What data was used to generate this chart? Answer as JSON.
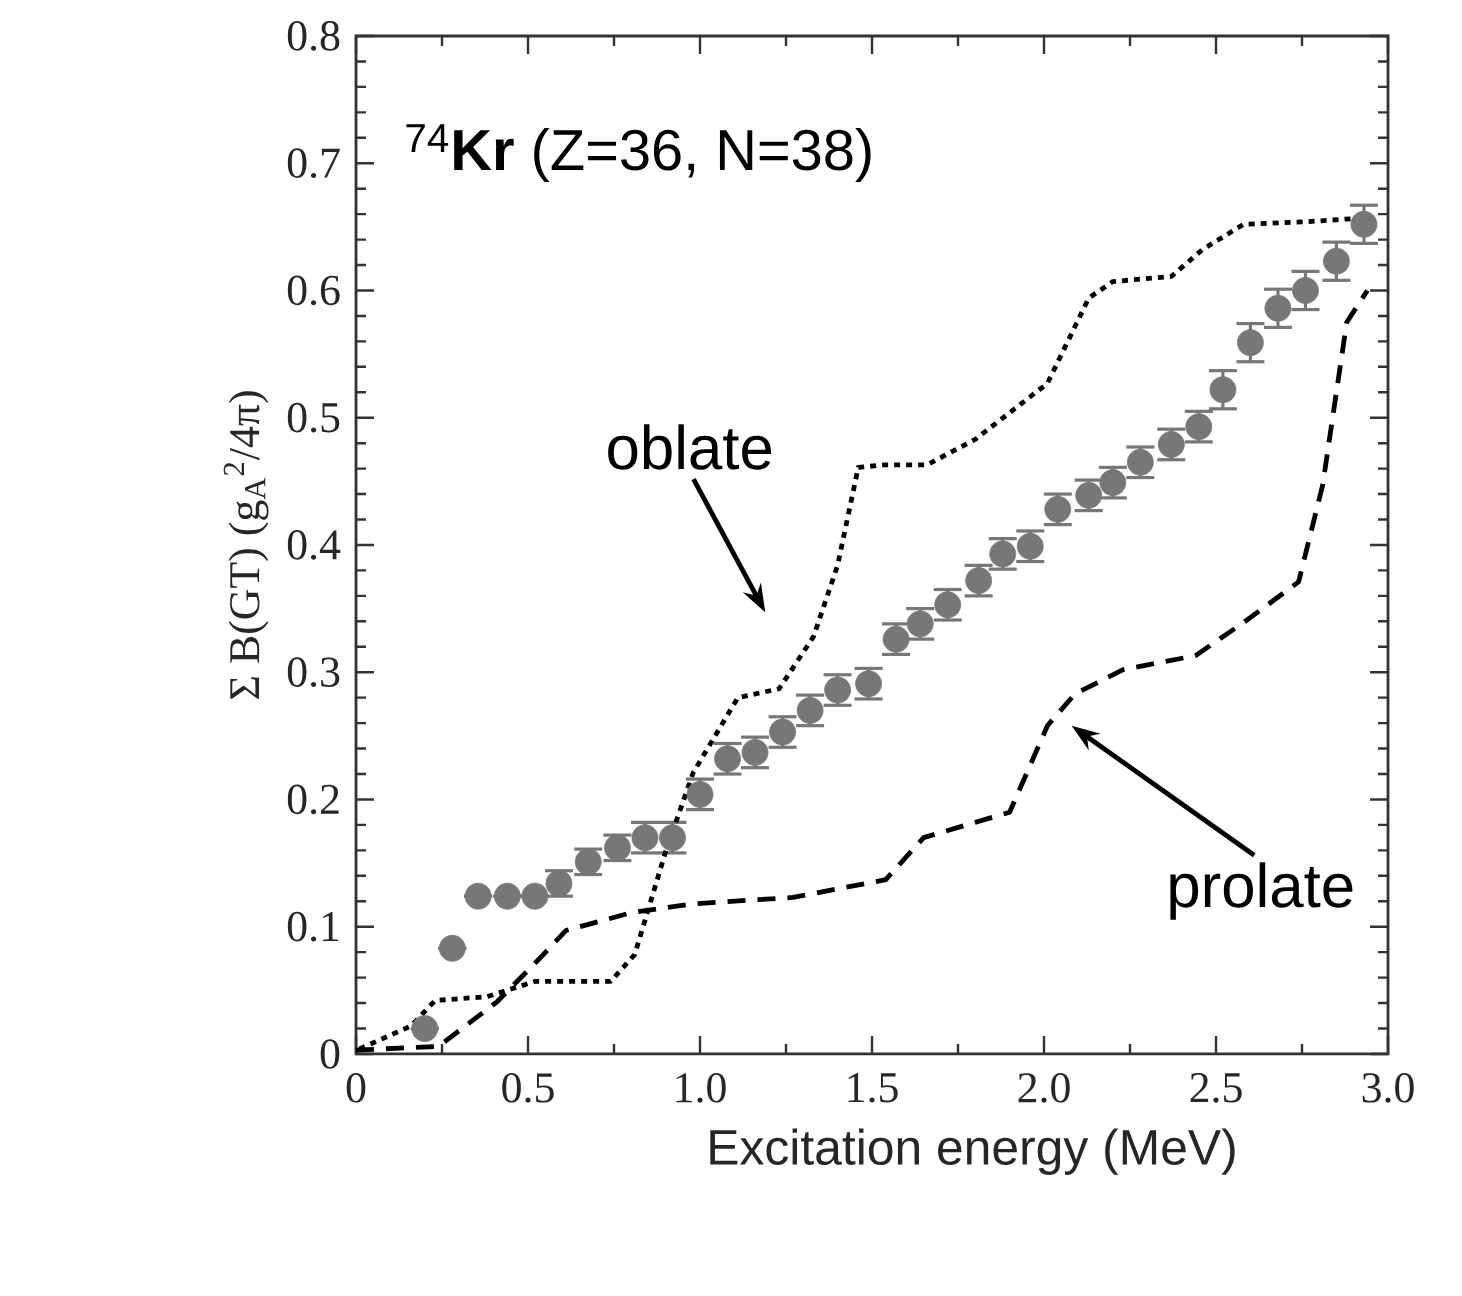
{
  "chart_data": {
    "type": "line",
    "title": "$^{74}$**Kr** (Z=36, N=38)",
    "xlabel": "Excitation energy (MeV)",
    "ylabel": "Σ B(GT) (g$_{A}$$^{2}$/4π)",
    "xlim": [
      0,
      3
    ],
    "ylim": [
      0,
      0.8
    ],
    "xticks": [
      0,
      0.5,
      {
        "value": 1,
        "label": "1.0"
      },
      1.5,
      {
        "value": 2,
        "label": "2.0"
      },
      2.5,
      {
        "value": 3,
        "label": "3.0"
      }
    ],
    "yticks": [
      0,
      0.1,
      0.2,
      0.3,
      0.4,
      0.5,
      0.6,
      0.7,
      0.8
    ],
    "grid": false,
    "series": [
      {
        "type": "scatter",
        "color": "#777777",
        "marker": "circle",
        "x": [
          0.2,
          0.28,
          0.355,
          0.44,
          0.52,
          0.59,
          0.675,
          0.76,
          0.84,
          0.92,
          1.0,
          1.08,
          1.16,
          1.24,
          1.32,
          1.4,
          1.49,
          1.57,
          1.64,
          1.72,
          1.81,
          1.88,
          1.96,
          2.04,
          2.13,
          2.2,
          2.28,
          2.37,
          2.45,
          2.52,
          2.6,
          2.68,
          2.76,
          2.85,
          2.93
        ],
        "values": [
          0.02,
          0.083,
          0.124,
          0.124,
          0.124,
          0.134,
          0.151,
          0.162,
          0.17,
          0.17,
          0.204,
          0.232,
          0.237,
          0.253,
          0.27,
          0.286,
          0.291,
          0.326,
          0.338,
          0.353,
          0.372,
          0.393,
          0.399,
          0.428,
          0.439,
          0.449,
          0.465,
          0.479,
          0.493,
          0.522,
          0.559,
          0.586,
          0.6,
          0.623,
          0.652
        ],
        "errors": [
          null,
          null,
          null,
          null,
          null,
          0.01,
          0.01,
          0.01,
          0.012,
          0.012,
          0.012,
          0.012,
          0.012,
          0.012,
          0.012,
          0.012,
          0.012,
          0.012,
          0.012,
          0.012,
          0.012,
          0.012,
          0.012,
          0.012,
          0.012,
          0.012,
          0.012,
          0.012,
          0.012,
          0.015,
          0.015,
          0.015,
          0.015,
          0.015,
          0.015
        ]
      },
      {
        "name": "oblate",
        "color": "#000000",
        "line_style": "dotted",
        "x": [
          0.01,
          0.16,
          0.23,
          0.38,
          0.52,
          0.74,
          0.81,
          0.9,
          0.98,
          1.11,
          1.23,
          1.33,
          1.4,
          1.46,
          1.54,
          1.66,
          1.8,
          2.01,
          2.13,
          2.2,
          2.37,
          2.46,
          2.58,
          2.76,
          2.93
        ],
        "values": [
          0.004,
          0.022,
          0.042,
          0.045,
          0.057,
          0.057,
          0.078,
          0.159,
          0.221,
          0.28,
          0.287,
          0.328,
          0.384,
          0.461,
          0.463,
          0.463,
          0.483,
          0.527,
          0.594,
          0.607,
          0.611,
          0.632,
          0.652,
          0.654,
          0.657
        ]
      },
      {
        "name": "prolate",
        "color": "#000000",
        "line_style": "dashed",
        "x": [
          0,
          0.24,
          0.41,
          0.53,
          0.61,
          0.8,
          0.98,
          1.27,
          1.54,
          1.65,
          1.9,
          2.01,
          2.09,
          2.23,
          2.44,
          2.58,
          2.74,
          2.81,
          2.88,
          2.94
        ],
        "values": [
          0.003,
          0.006,
          0.041,
          0.074,
          0.097,
          0.111,
          0.118,
          0.123,
          0.137,
          0.17,
          0.19,
          0.258,
          0.283,
          0.302,
          0.313,
          0.339,
          0.371,
          0.447,
          0.575,
          0.6
        ]
      }
    ]
  }
}
